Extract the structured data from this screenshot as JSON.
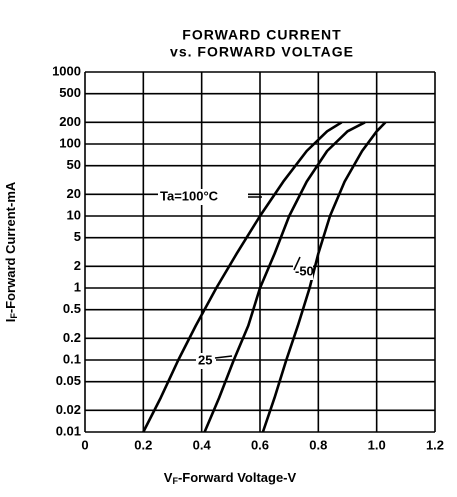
{
  "chart_data": {
    "type": "line",
    "title": [
      "FORWARD CURRENT",
      "vs. FORWARD VOLTAGE"
    ],
    "y_label": {
      "symbol": "I",
      "subscript": "F",
      "text": "-Forward Current-mA"
    },
    "x_label": {
      "symbol": "V",
      "subscript": "F",
      "text": "-Forward Voltage-V"
    },
    "xlim": [
      0,
      1.2
    ],
    "ylim": [
      0.01,
      1000
    ],
    "log_y": true,
    "grid": true,
    "xticks": [
      0,
      0.2,
      0.4,
      0.6,
      0.8,
      {
        "value": 1.0,
        "label": "1.0"
      },
      1.2
    ],
    "yticks": [
      1000,
      500,
      200,
      100,
      50,
      20,
      10,
      5,
      2,
      1,
      0.5,
      0.2,
      0.1,
      0.05,
      0.02,
      0.01
    ],
    "series": [
      {
        "name": "Ta=100°C",
        "color": "#000000",
        "x": [
          0.2,
          0.26,
          0.32,
          0.38,
          0.45,
          0.52,
          0.6,
          0.68,
          0.76,
          0.83,
          0.88
        ],
        "values": [
          0.01,
          0.03,
          0.1,
          0.3,
          1,
          3,
          10,
          30,
          80,
          150,
          200
        ]
      },
      {
        "name": "25",
        "color": "#000000",
        "x": [
          0.41,
          0.46,
          0.51,
          0.56,
          0.6,
          0.65,
          0.7,
          0.76,
          0.83,
          0.9,
          0.96
        ],
        "values": [
          0.01,
          0.03,
          0.1,
          0.3,
          1,
          3,
          10,
          30,
          80,
          150,
          200
        ]
      },
      {
        "name": "-50",
        "color": "#000000",
        "x": [
          0.61,
          0.65,
          0.69,
          0.73,
          0.77,
          0.8,
          0.84,
          0.89,
          0.95,
          1.0,
          1.03
        ],
        "values": [
          0.01,
          0.03,
          0.1,
          0.3,
          1,
          3,
          10,
          30,
          80,
          150,
          200
        ]
      }
    ]
  }
}
